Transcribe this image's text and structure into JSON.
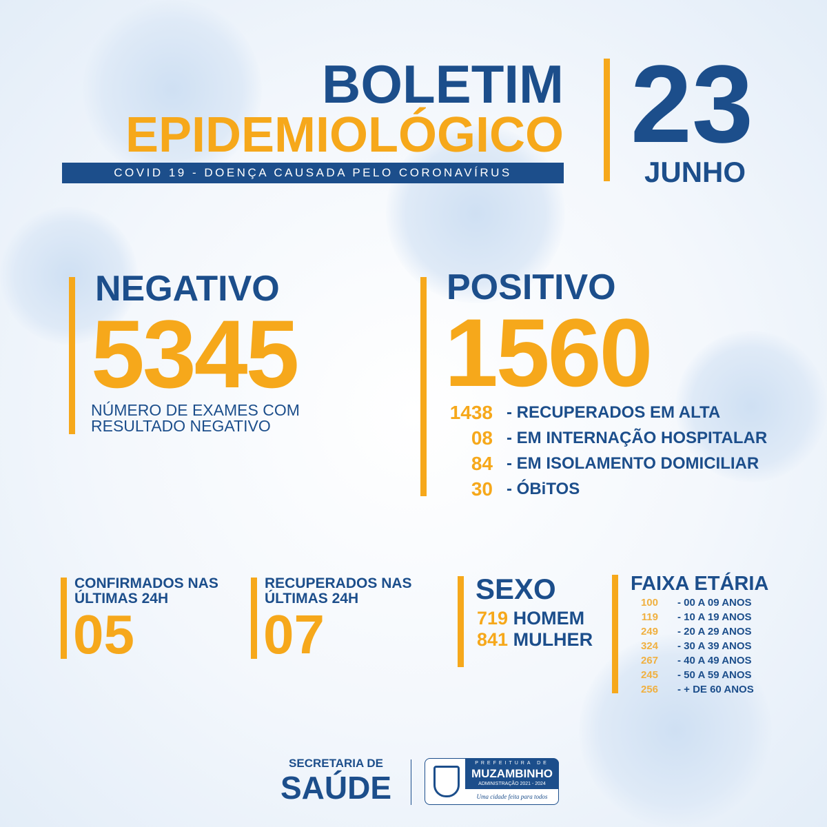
{
  "header": {
    "title_line1": "BOLETIM",
    "title_line2": "EPIDEMIOLÓGICO",
    "subtitle": "COVID 19 - DOENÇA CAUSADA PELO CORONAVÍRUS",
    "day": "23",
    "month": "JUNHO"
  },
  "negativo": {
    "label": "NEGATIVO",
    "value": "5345",
    "description_line1": "NÚMERO DE EXAMES COM",
    "description_line2": "RESULTADO NEGATIVO"
  },
  "positivo": {
    "label": "POSITIVO",
    "value": "1560",
    "breakdown": [
      {
        "value": "1438",
        "label": "- RECUPERADOS EM ALTA"
      },
      {
        "value": "08",
        "label": "- EM INTERNAÇÃO HOSPITALAR"
      },
      {
        "value": "84",
        "label": "- EM ISOLAMENTO DOMICILIAR"
      },
      {
        "value": "30",
        "label": "- ÓBiTOS"
      }
    ]
  },
  "confirmados_24h": {
    "label_line1": "CONFIRMADOS NAS",
    "label_line2": "ÚLTIMAS 24H",
    "value": "05"
  },
  "recuperados_24h": {
    "label_line1": "RECUPERADOS NAS",
    "label_line2": "ÚLTIMAS 24H",
    "value": "07"
  },
  "sexo": {
    "label": "SEXO",
    "items": [
      {
        "value": "719",
        "label": "HOMEM"
      },
      {
        "value": "841",
        "label": "MULHER"
      }
    ]
  },
  "faixa_etaria": {
    "label": "FAIXA ETÁRIA",
    "items": [
      {
        "value": "100",
        "label": "- 00 A 09 ANOS"
      },
      {
        "value": "119",
        "label": "- 10 A 19 ANOS"
      },
      {
        "value": "249",
        "label": "- 20 A 29 ANOS"
      },
      {
        "value": "324",
        "label": "- 30 A 39 ANOS"
      },
      {
        "value": "267",
        "label": "- 40 A 49 ANOS"
      },
      {
        "value": "245",
        "label": "- 50 A 59 ANOS"
      },
      {
        "value": "256",
        "label": "- + DE 60 ANOS"
      }
    ]
  },
  "footer": {
    "secretaria_line1": "SECRETARIA DE",
    "secretaria_line2": "SAÚDE",
    "prefeitura": "PREFEITURA DE",
    "city": "MUZAMBINHO",
    "administration": "ADMINISTRAÇÃO 2021 - 2024",
    "slogan": "Uma cidade feita para todos"
  },
  "colors": {
    "blue": "#1c4e8b",
    "orange": "#f6a81b"
  }
}
